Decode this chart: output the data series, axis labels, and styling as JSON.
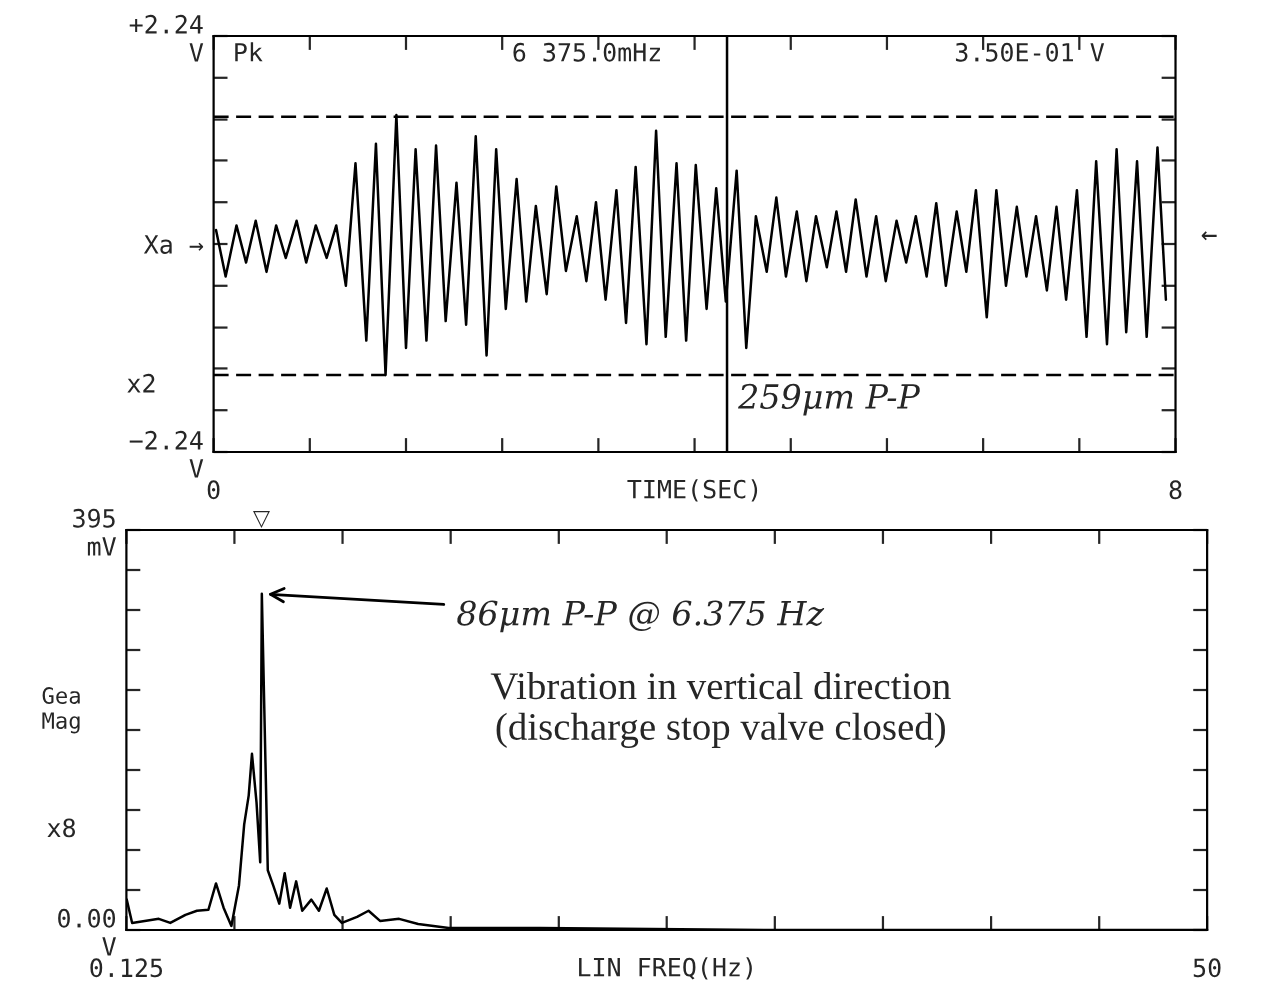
{
  "chart_data": [
    {
      "type": "line",
      "xlabel": "TIME(SEC)",
      "xlim": [
        0,
        8
      ],
      "ylim": [
        -2.24,
        2.24
      ],
      "xticks": [
        {
          "value": 0,
          "label": "0"
        },
        {
          "value": 0.8,
          "label": null
        },
        {
          "value": 1.6,
          "label": null
        },
        {
          "value": 2.4,
          "label": null
        },
        {
          "value": 3.2,
          "label": null
        },
        {
          "value": 4.0,
          "label": null
        },
        {
          "value": 4.8,
          "label": null
        },
        {
          "value": 5.6,
          "label": null
        },
        {
          "value": 6.4,
          "label": null
        },
        {
          "value": 7.2,
          "label": null
        },
        {
          "value": 8,
          "label": "8"
        }
      ],
      "yticks": [
        {
          "value": 2.24,
          "label": "+2.24\nV"
        },
        {
          "value": 1.79,
          "label": null
        },
        {
          "value": 1.34,
          "label": null
        },
        {
          "value": 0.9,
          "label": null
        },
        {
          "value": 0.45,
          "label": null
        },
        {
          "value": 0,
          "label": "Xa →"
        },
        {
          "value": -0.45,
          "label": null
        },
        {
          "value": -0.9,
          "label": null
        },
        {
          "value": -1.34,
          "label": null
        },
        {
          "value": -1.79,
          "label": null
        },
        {
          "value": -2.24,
          "label": "−2.24\nV"
        }
      ],
      "series": [
        {
          "color": "#000000",
          "x": [
            0.02,
            0.1,
            0.19,
            0.27,
            0.35,
            0.44,
            0.52,
            0.6,
            0.69,
            0.77,
            0.85,
            0.94,
            1.02,
            1.1,
            1.18,
            1.27,
            1.35,
            1.43,
            1.52,
            1.6,
            1.68,
            1.77,
            1.85,
            1.93,
            2.02,
            2.1,
            2.18,
            2.27,
            2.35,
            2.43,
            2.52,
            2.6,
            2.68,
            2.77,
            2.85,
            2.93,
            3.02,
            3.1,
            3.18,
            3.26,
            3.35,
            3.43,
            3.51,
            3.6,
            3.68,
            3.76,
            3.85,
            3.93,
            4.01,
            4.1,
            4.18,
            4.26,
            4.35,
            4.43,
            4.51,
            4.6,
            4.68,
            4.76,
            4.85,
            4.93,
            5.01,
            5.1,
            5.18,
            5.26,
            5.34,
            5.43,
            5.51,
            5.59,
            5.68,
            5.76,
            5.84,
            5.93,
            6.01,
            6.09,
            6.18,
            6.26,
            6.34,
            6.43,
            6.51,
            6.59,
            6.68,
            6.76,
            6.84,
            6.93,
            7.01,
            7.09,
            7.18,
            7.26,
            7.34,
            7.43,
            7.51,
            7.59,
            7.68,
            7.76,
            7.85,
            7.92
          ],
          "values": [
            0.15,
            -0.35,
            0.2,
            -0.2,
            0.25,
            -0.3,
            0.2,
            -0.15,
            0.25,
            -0.2,
            0.2,
            -0.15,
            0.2,
            -0.45,
            0.87,
            -1.04,
            1.08,
            -1.41,
            1.39,
            -1.12,
            1.02,
            -1.04,
            1.06,
            -0.83,
            0.66,
            -0.87,
            1.16,
            -1.2,
            1.02,
            -0.7,
            0.7,
            -0.62,
            0.41,
            -0.54,
            0.62,
            -0.29,
            0.3,
            -0.4,
            0.45,
            -0.6,
            0.58,
            -0.85,
            0.83,
            -1.08,
            1.22,
            -1.0,
            0.87,
            -1.04,
            0.85,
            -0.7,
            0.6,
            -0.62,
            0.79,
            -1.12,
            0.3,
            -0.3,
            0.5,
            -0.35,
            0.35,
            -0.4,
            0.3,
            -0.25,
            0.35,
            -0.3,
            0.48,
            -0.35,
            0.3,
            -0.4,
            0.25,
            -0.2,
            0.3,
            -0.35,
            0.44,
            -0.45,
            0.35,
            -0.3,
            0.58,
            -0.79,
            0.58,
            -0.45,
            0.4,
            -0.35,
            0.3,
            -0.5,
            0.4,
            -0.6,
            0.58,
            -1.0,
            0.89,
            -1.08,
            1.02,
            -0.95,
            0.89,
            -1.0,
            1.04,
            -0.6
          ]
        }
      ],
      "ref_lines": [
        {
          "axis": "y",
          "value": 1.37,
          "label": null,
          "color": "#000000",
          "line_style": "dashed"
        },
        {
          "axis": "y",
          "value": -1.41,
          "label": null,
          "color": "#000000",
          "line_style": "dashed"
        },
        {
          "axis": "x",
          "value": 4.27,
          "label": null,
          "color": "#000000",
          "line_style": "solid"
        }
      ],
      "annotations": [
        "Pk",
        "6 375.0mHz",
        "3.50E-01 V",
        "x2",
        "←",
        {
          "text": "259μm P-P",
          "x": 4.27,
          "y": -1.41
        }
      ]
    },
    {
      "type": "line",
      "xlabel": "LIN FREQ(Hz)",
      "ylabel": "Gea\nMag",
      "xlim": [
        0.125,
        50
      ],
      "ylim": [
        0,
        395
      ],
      "xticks": [
        {
          "value": 0.125,
          "label": "0.125"
        },
        {
          "value": 5.11,
          "label": null
        },
        {
          "value": 10.1,
          "label": null
        },
        {
          "value": 15.09,
          "label": null
        },
        {
          "value": 20.08,
          "label": null
        },
        {
          "value": 25.06,
          "label": null
        },
        {
          "value": 30.05,
          "label": null
        },
        {
          "value": 35.04,
          "label": null
        },
        {
          "value": 40.03,
          "label": null
        },
        {
          "value": 45.02,
          "label": null
        },
        {
          "value": 50,
          "label": "50"
        }
      ],
      "yticks": [
        {
          "value": 395,
          "label": "395\nmV"
        },
        {
          "value": 355.5,
          "label": null
        },
        {
          "value": 316,
          "label": null
        },
        {
          "value": 276.5,
          "label": null
        },
        {
          "value": 237,
          "label": null
        },
        {
          "value": 197.5,
          "label": null
        },
        {
          "value": 158,
          "label": null
        },
        {
          "value": 118.5,
          "label": null
        },
        {
          "value": 79,
          "label": null
        },
        {
          "value": 39.5,
          "label": null
        },
        {
          "value": 0,
          "label": "0.00\nV"
        }
      ],
      "series": [
        {
          "color": "#000000",
          "x": [
            0.14,
            0.39,
            1.62,
            2.15,
            2.85,
            3.38,
            3.91,
            4.26,
            4.61,
            4.97,
            5.32,
            5.56,
            5.77,
            5.92,
            6.13,
            6.3,
            6.375,
            6.65,
            6.9,
            7.18,
            7.43,
            7.68,
            7.96,
            8.24,
            8.66,
            9.01,
            9.37,
            9.72,
            10.07,
            10.77,
            11.3,
            11.83,
            12.71,
            13.59,
            15.0,
            19.2,
            29.8,
            50
          ],
          "values": [
            30,
            7,
            11,
            7,
            15,
            19,
            20,
            46,
            22,
            4,
            44,
            104,
            133,
            174,
            126,
            67,
            332,
            59,
            44,
            26,
            56,
            22,
            48,
            19,
            30,
            19,
            41,
            15,
            7,
            13,
            19,
            9,
            11,
            6,
            2,
            2,
            0,
            0
          ]
        }
      ],
      "annotations": [
        "x8",
        "Vibration in vertical direction\n(discharge stop valve closed)",
        "▽",
        {
          "text": "86μm P-P @ 6.375 Hz",
          "x": 6.375,
          "y": 332
        }
      ]
    }
  ]
}
